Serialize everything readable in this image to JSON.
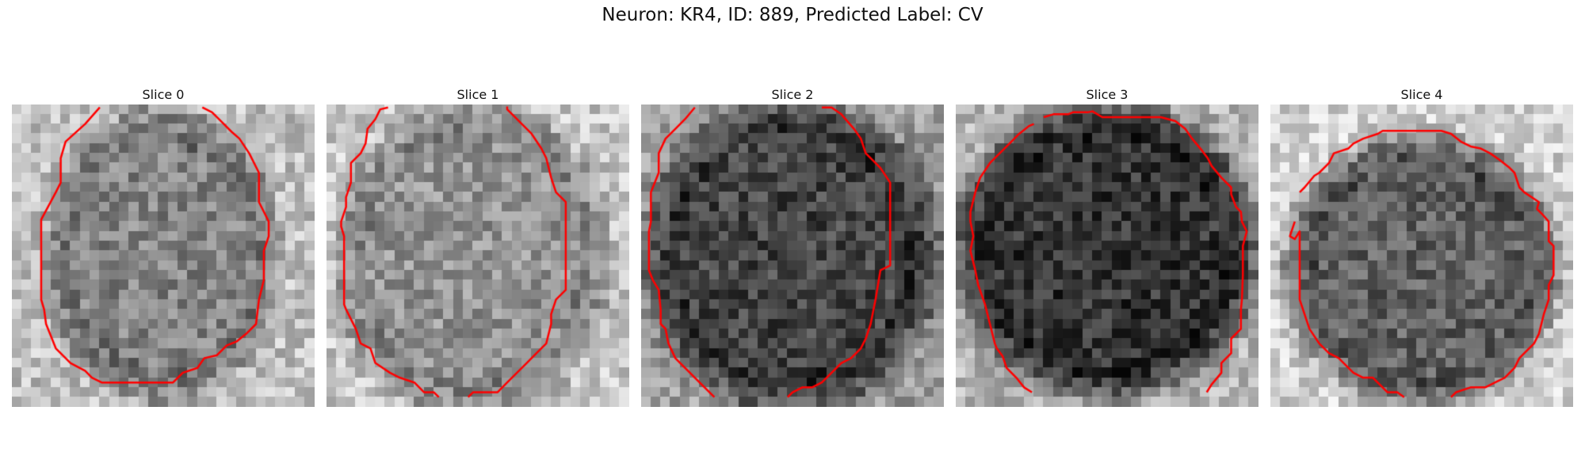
{
  "figure": {
    "title": "Neuron: KR4, ID: 889, Predicted Label: CV"
  },
  "panels": [
    {
      "title": "Slice 0",
      "contour_color": "#ff0000"
    },
    {
      "title": "Slice 1",
      "contour_color": "#ff0000"
    },
    {
      "title": "Slice 2",
      "contour_color": "#ff0000"
    },
    {
      "title": "Slice 3",
      "contour_color": "#ff0000"
    },
    {
      "title": "Slice 4",
      "contour_color": "#ff0000"
    }
  ]
}
